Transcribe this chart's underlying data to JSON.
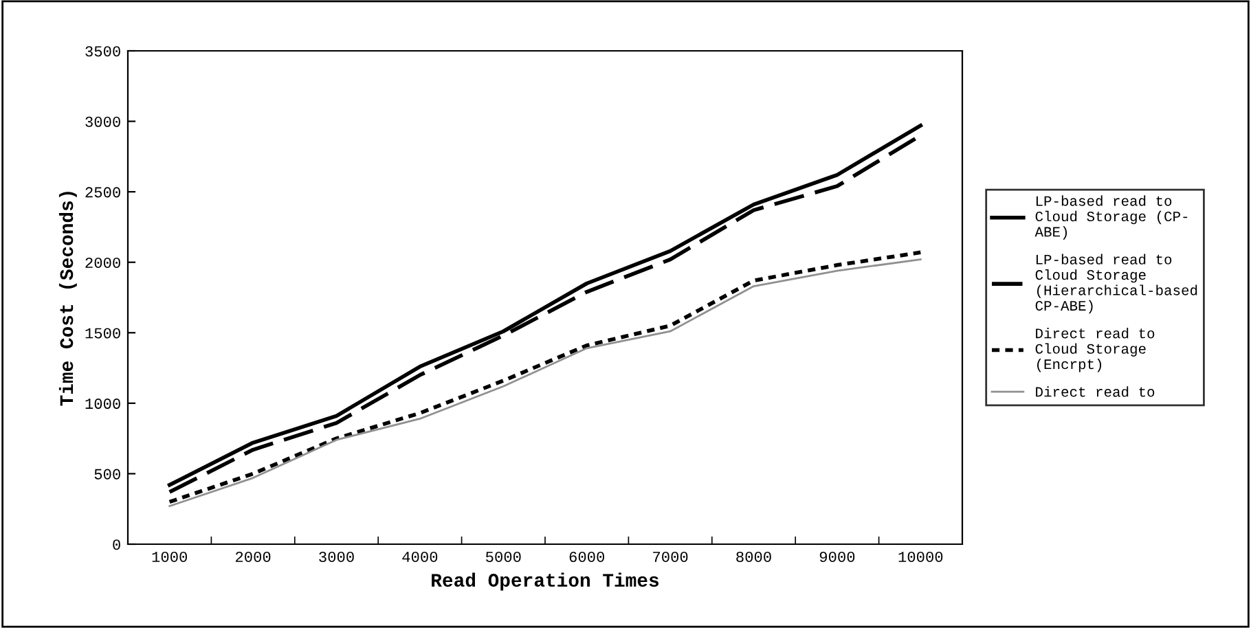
{
  "chart_data": {
    "type": "line",
    "xlabel": "Read Operation Times",
    "ylabel": "Time Cost (Seconds)",
    "categories": [
      "1000",
      "2000",
      "3000",
      "4000",
      "5000",
      "6000",
      "7000",
      "8000",
      "9000",
      "10000"
    ],
    "ylim": [
      0,
      3500
    ],
    "yticks": [
      0,
      500,
      1000,
      1500,
      2000,
      2500,
      3000,
      3500
    ],
    "grid": false,
    "legend": "right",
    "marker": "none",
    "series": [
      {
        "name": "LP-based read to\nCloud Storage (CP-\nABE)",
        "color": "#000000",
        "line_style": "solid",
        "values": [
          420,
          720,
          910,
          1260,
          1510,
          1850,
          2080,
          2410,
          2620,
          2970
        ]
      },
      {
        "name": "LP-based read to\nCloud Storage\n(Hierarchical-based\nCP-ABE)",
        "color": "#000000",
        "line_style": "dashed",
        "values": [
          370,
          670,
          860,
          1200,
          1480,
          1790,
          2020,
          2370,
          2540,
          2900
        ]
      },
      {
        "name": "Direct read to\nCloud Storage\n(Encrpt)",
        "color": "#000000",
        "line_style": "dotted",
        "values": [
          300,
          500,
          750,
          930,
          1160,
          1410,
          1550,
          1870,
          1980,
          2070
        ]
      },
      {
        "name": "Direct read to",
        "color": "#909090",
        "line_style": "solid",
        "values": [
          270,
          470,
          740,
          890,
          1120,
          1390,
          1510,
          1830,
          1940,
          2020
        ]
      }
    ]
  }
}
